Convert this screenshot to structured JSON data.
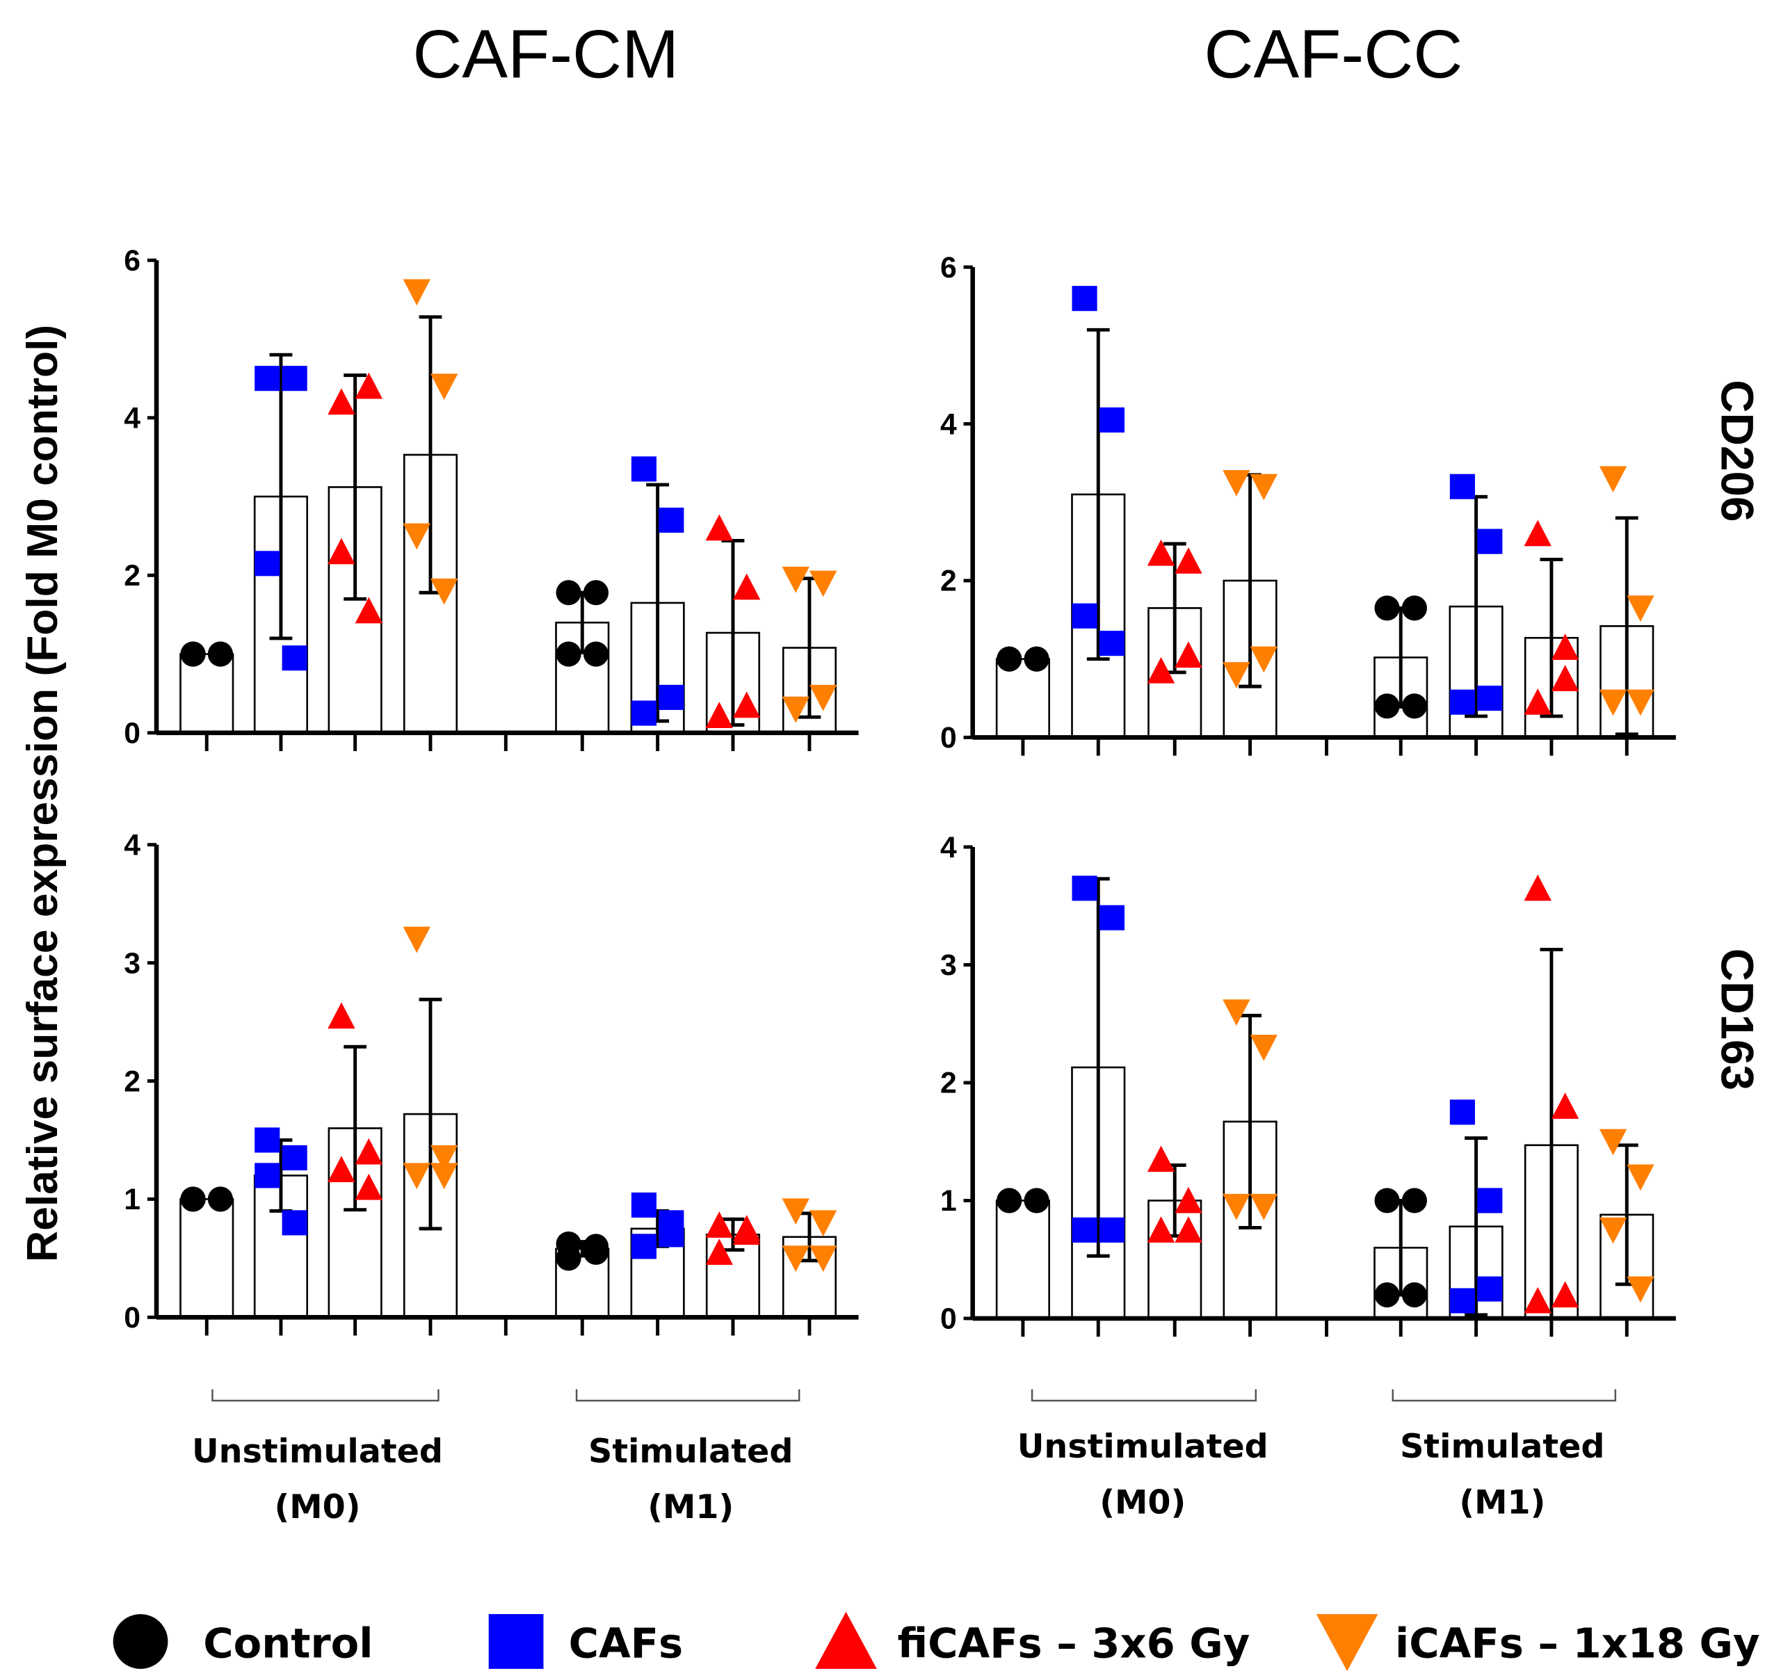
{
  "chart_data": {
    "type": "bar",
    "column_titles": [
      "CAF-CM",
      "CAF-CC"
    ],
    "row_labels": [
      "CD206",
      "CD163"
    ],
    "ylabel": "Relative surface expression (Fold M0 control)",
    "groups": [
      {
        "label": "Unstimulated",
        "sub": "(M0)"
      },
      {
        "label": "Stimulated",
        "sub": "(M1)"
      }
    ],
    "legend": [
      {
        "name": "Control",
        "color": "#000000",
        "marker": "circle"
      },
      {
        "name": "CAFs",
        "color": "#0000ff",
        "marker": "square"
      },
      {
        "name": "fiCAFs – 3x6 Gy",
        "color": "#ff0000",
        "marker": "triangle-up"
      },
      {
        "name": "iCAFs – 1x18 Gy",
        "color": "#ff7f00",
        "marker": "triangle-down"
      }
    ],
    "panels": [
      {
        "name": "CD206-CAF-CM",
        "ylim": [
          0,
          6
        ],
        "yticks": [
          0,
          2,
          4,
          6
        ],
        "bars": [
          {
            "mean": 1.0,
            "err": 0.0,
            "points": [
              1,
              1,
              1,
              1
            ]
          },
          {
            "mean": 3.0,
            "err": 1.8,
            "points": [
              4.5,
              4.5,
              2.15,
              0.95
            ]
          },
          {
            "mean": 3.12,
            "err": 1.42,
            "points": [
              4.2,
              4.4,
              2.3,
              1.55
            ]
          },
          {
            "mean": 3.53,
            "err": 1.75,
            "points": [
              5.6,
              4.4,
              2.5,
              1.8
            ]
          },
          {
            "mean": 1.4,
            "err": 0.38,
            "points": [
              1.78,
              1.78,
              1.0,
              1.0
            ]
          },
          {
            "mean": 1.65,
            "err": 1.5,
            "points": [
              3.35,
              2.7,
              0.25,
              0.45
            ]
          },
          {
            "mean": 1.27,
            "err": 1.17,
            "points": [
              2.6,
              1.85,
              0.22,
              0.35
            ]
          },
          {
            "mean": 1.08,
            "err": 0.88,
            "points": [
              1.95,
              1.9,
              0.3,
              0.45
            ]
          }
        ]
      },
      {
        "name": "CD206-CAF-CC",
        "ylim": [
          0,
          6
        ],
        "yticks": [
          0,
          2,
          4,
          6
        ],
        "bars": [
          {
            "mean": 1.0,
            "err": 0.0,
            "points": [
              1,
              1,
              1,
              1
            ]
          },
          {
            "mean": 3.1,
            "err": 2.1,
            "points": [
              5.6,
              4.05,
              1.55,
              1.2
            ]
          },
          {
            "mean": 1.65,
            "err": 0.82,
            "points": [
              2.35,
              2.25,
              0.85,
              1.05
            ]
          },
          {
            "mean": 2.0,
            "err": 1.35,
            "points": [
              3.25,
              3.2,
              0.8,
              1.0
            ]
          },
          {
            "mean": 1.02,
            "err": 0.63,
            "points": [
              1.65,
              1.65,
              0.4,
              0.4
            ]
          },
          {
            "mean": 1.67,
            "err": 1.4,
            "points": [
              3.2,
              2.5,
              0.45,
              0.5
            ]
          },
          {
            "mean": 1.27,
            "err": 1.0,
            "points": [
              2.6,
              1.15,
              0.45,
              0.75
            ]
          },
          {
            "mean": 1.42,
            "err": 1.38,
            "points": [
              3.3,
              1.65,
              0.45,
              0.45
            ]
          }
        ]
      },
      {
        "name": "CD163-CAF-CM",
        "ylim": [
          0,
          4
        ],
        "yticks": [
          0,
          1,
          2,
          3,
          4
        ],
        "bars": [
          {
            "mean": 1.0,
            "err": 0.0,
            "points": [
              1,
              1,
              1,
              1
            ]
          },
          {
            "mean": 1.2,
            "err": 0.3,
            "points": [
              1.5,
              1.35,
              1.2,
              0.8
            ]
          },
          {
            "mean": 1.6,
            "err": 0.69,
            "points": [
              2.55,
              1.4,
              1.25,
              1.1
            ]
          },
          {
            "mean": 1.72,
            "err": 0.97,
            "points": [
              3.2,
              1.35,
              1.2,
              1.2
            ]
          },
          {
            "mean": 0.58,
            "err": 0.06,
            "points": [
              0.62,
              0.55,
              0.5,
              0.6
            ]
          },
          {
            "mean": 0.75,
            "err": 0.15,
            "points": [
              0.95,
              0.8,
              0.6,
              0.7
            ]
          },
          {
            "mean": 0.7,
            "err": 0.13,
            "points": [
              0.78,
              0.75,
              0.55,
              0.72
            ]
          },
          {
            "mean": 0.68,
            "err": 0.2,
            "points": [
              0.9,
              0.8,
              0.5,
              0.5
            ]
          }
        ]
      },
      {
        "name": "CD163-CAF-CC",
        "ylim": [
          0,
          4
        ],
        "yticks": [
          0,
          1,
          2,
          3,
          4
        ],
        "bars": [
          {
            "mean": 1.0,
            "err": 0.0,
            "points": [
              1,
              1,
              1,
              1
            ]
          },
          {
            "mean": 2.13,
            "err": 1.6,
            "points": [
              3.65,
              3.4,
              0.75,
              0.75
            ]
          },
          {
            "mean": 1.0,
            "err": 0.3,
            "points": [
              1.35,
              1.0,
              0.75,
              0.75
            ]
          },
          {
            "mean": 1.67,
            "err": 0.9,
            "points": [
              2.6,
              2.3,
              0.95,
              0.95
            ]
          },
          {
            "mean": 0.6,
            "err": 0.4,
            "points": [
              1.0,
              1.0,
              0.2,
              0.2
            ]
          },
          {
            "mean": 0.78,
            "err": 0.75,
            "points": [
              1.75,
              1.0,
              0.15,
              0.25
            ]
          },
          {
            "mean": 1.47,
            "err": 1.66,
            "points": [
              3.65,
              1.8,
              0.15,
              0.2
            ]
          },
          {
            "mean": 0.88,
            "err": 0.59,
            "points": [
              1.5,
              1.2,
              0.75,
              0.25
            ]
          }
        ]
      }
    ]
  }
}
